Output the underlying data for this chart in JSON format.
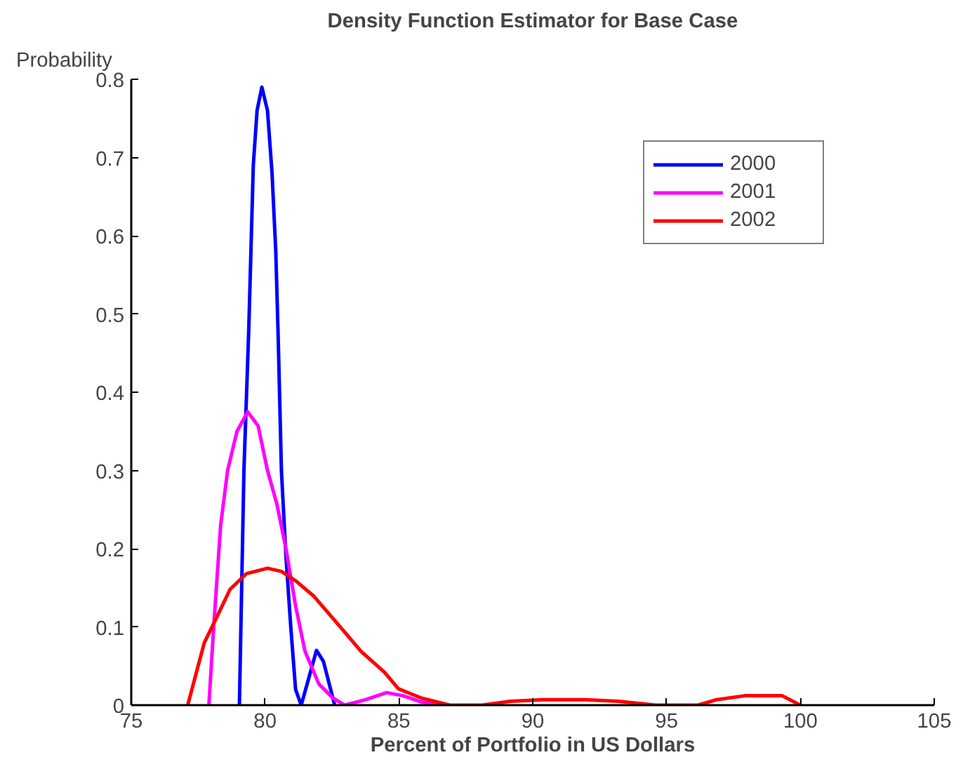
{
  "chart_data": {
    "type": "line",
    "title": "Density Function Estimator for Base Case",
    "xlabel": "Percent of Portfolio in US Dollars",
    "ylabel": "Probability",
    "xlim": [
      75,
      105
    ],
    "xticks": [
      75,
      80,
      85,
      90,
      95,
      100,
      105
    ],
    "ylim": [
      0,
      0.8
    ],
    "yticks": [
      0,
      0.1,
      0.2,
      0.3,
      0.4,
      0.5,
      0.6,
      0.7,
      0.8
    ],
    "grid": false,
    "legend": "top right",
    "marker": "none",
    "line_style": "solid",
    "series": [
      {
        "name": "2000",
        "color": "#0000ff",
        "x": [
          79.04,
          79.21,
          79.39,
          79.56,
          79.7,
          79.88,
          80.09,
          80.26,
          80.4,
          80.49,
          80.61,
          80.78,
          80.96,
          81.14,
          81.35,
          81.62,
          81.92,
          82.18,
          82.45,
          82.6
        ],
        "values": [
          0,
          0.3,
          0.48,
          0.69,
          0.76,
          0.79,
          0.76,
          0.68,
          0.58,
          0.47,
          0.3,
          0.19,
          0.1,
          0.02,
          0,
          0.033,
          0.07,
          0.056,
          0.02,
          0
        ]
      },
      {
        "name": "2001",
        "color": "#ff00ff",
        "x": [
          77.9,
          78.08,
          78.34,
          78.6,
          78.95,
          79.35,
          79.74,
          80.09,
          80.44,
          80.78,
          81.14,
          81.49,
          82.01,
          82.54,
          82.97,
          83.76,
          84.54,
          85.16,
          85.85,
          86.5
        ],
        "values": [
          0,
          0.1,
          0.23,
          0.3,
          0.35,
          0.375,
          0.357,
          0.3,
          0.257,
          0.2,
          0.127,
          0.069,
          0.027,
          0.009,
          0,
          0.007,
          0.016,
          0.012,
          0.004,
          0
        ]
      },
      {
        "name": "2002",
        "color": "#ff0000",
        "x": [
          77.11,
          77.73,
          78.16,
          78.69,
          79.3,
          80.09,
          80.61,
          81.14,
          81.83,
          82.71,
          83.58,
          84.46,
          84.98,
          85.85,
          86.9,
          88.1,
          89.16,
          90.4,
          91.97,
          93.2,
          94.6,
          96.17,
          96.87,
          97.92,
          99.32,
          100.0
        ],
        "values": [
          0,
          0.08,
          0.11,
          0.148,
          0.168,
          0.175,
          0.171,
          0.159,
          0.139,
          0.104,
          0.069,
          0.042,
          0.021,
          0.009,
          0,
          0,
          0.005,
          0.007,
          0.007,
          0.005,
          0,
          0,
          0.007,
          0.012,
          0.012,
          0
        ]
      }
    ]
  }
}
